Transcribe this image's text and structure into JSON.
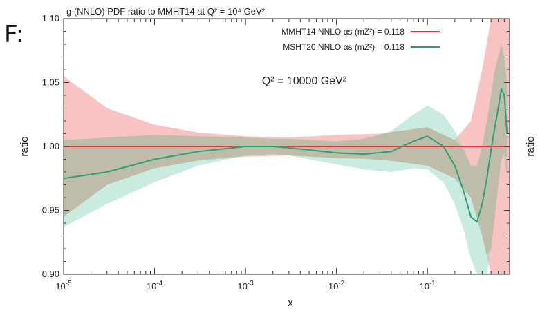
{
  "left_text": "F:",
  "chart_data": {
    "type": "line",
    "title": "g (NNLO) PDF ratio to MMHT14 at Q² = 10⁴ GeV²",
    "annotation": "Q² = 10000 GeV²",
    "xlabel": "x",
    "ylabel": "ratio",
    "ylabel_right": "ratio",
    "x_scale": "log",
    "xlim": [
      1e-05,
      0.8
    ],
    "ylim": [
      0.9,
      1.1
    ],
    "x_ticks": [
      {
        "value": 1e-05,
        "base": "10",
        "exp": "-5"
      },
      {
        "value": 0.0001,
        "base": "10",
        "exp": "-4"
      },
      {
        "value": 0.001,
        "base": "10",
        "exp": "-3"
      },
      {
        "value": 0.01,
        "base": "10",
        "exp": "-2"
      },
      {
        "value": 0.1,
        "base": "10",
        "exp": "-1"
      }
    ],
    "y_ticks": [
      {
        "value": 0.9,
        "label": "0.90"
      },
      {
        "value": 0.95,
        "label": "0.95"
      },
      {
        "value": 1.0,
        "label": "1.00"
      },
      {
        "value": 1.05,
        "label": "1.05"
      },
      {
        "value": 1.1,
        "label": "1.10"
      }
    ],
    "grid": false,
    "legend_position": "top-right",
    "series": [
      {
        "name": "MMHT14 NNLO αs (mZ²) = 0.118",
        "color": "#e03a3a",
        "band_color": "#f4a3a3",
        "x": [
          1e-05,
          3e-05,
          0.0001,
          0.0003,
          0.001,
          0.003,
          0.01,
          0.03,
          0.1,
          0.2,
          0.3,
          0.4,
          0.5,
          0.6,
          0.8
        ],
        "values": [
          1.0,
          1.0,
          1.0,
          1.0,
          1.0,
          1.0,
          1.0,
          1.0,
          1.0,
          1.0,
          1.0,
          1.0,
          1.0,
          1.0,
          1.0
        ],
        "band_upper": [
          1.055,
          1.03,
          1.017,
          1.011,
          1.008,
          1.007,
          1.009,
          1.01,
          1.015,
          1.005,
          1.02,
          1.06,
          1.1,
          1.1,
          1.1
        ],
        "band_lower": [
          0.945,
          0.97,
          0.983,
          0.989,
          0.992,
          0.993,
          0.991,
          0.99,
          0.985,
          0.975,
          0.96,
          0.93,
          0.9,
          0.9,
          0.9
        ]
      },
      {
        "name": "MSHT20 NNLO αs (mZ²) = 0.118",
        "color": "#2e9e7a",
        "band_color": "#9fdcc6",
        "x": [
          1e-05,
          3e-05,
          0.0001,
          0.0003,
          0.001,
          0.002,
          0.003,
          0.01,
          0.02,
          0.04,
          0.07,
          0.1,
          0.15,
          0.2,
          0.25,
          0.3,
          0.35,
          0.4,
          0.45,
          0.5,
          0.55,
          0.6,
          0.65,
          0.7,
          0.75
        ],
        "values": [
          0.975,
          0.98,
          0.99,
          0.996,
          1.0,
          1.0,
          0.999,
          0.995,
          0.994,
          0.996,
          1.004,
          1.008,
          1.0,
          0.985,
          0.965,
          0.945,
          0.941,
          0.955,
          0.975,
          0.997,
          1.015,
          1.03,
          1.045,
          1.04,
          1.01
        ],
        "band_upper": [
          1.005,
          1.007,
          1.009,
          1.008,
          1.007,
          1.006,
          1.006,
          1.004,
          1.006,
          1.012,
          1.025,
          1.032,
          1.025,
          1.012,
          0.998,
          0.985,
          0.985,
          1.0,
          1.02,
          1.04,
          1.06,
          1.07,
          1.08,
          1.07,
          1.05
        ],
        "band_lower": [
          0.937,
          0.955,
          0.972,
          0.985,
          0.993,
          0.994,
          0.993,
          0.986,
          0.982,
          0.98,
          0.983,
          0.982,
          0.972,
          0.955,
          0.935,
          0.912,
          0.9,
          0.9,
          0.9,
          0.92,
          0.945,
          0.97,
          0.99,
          0.995,
          0.975
        ]
      }
    ]
  }
}
